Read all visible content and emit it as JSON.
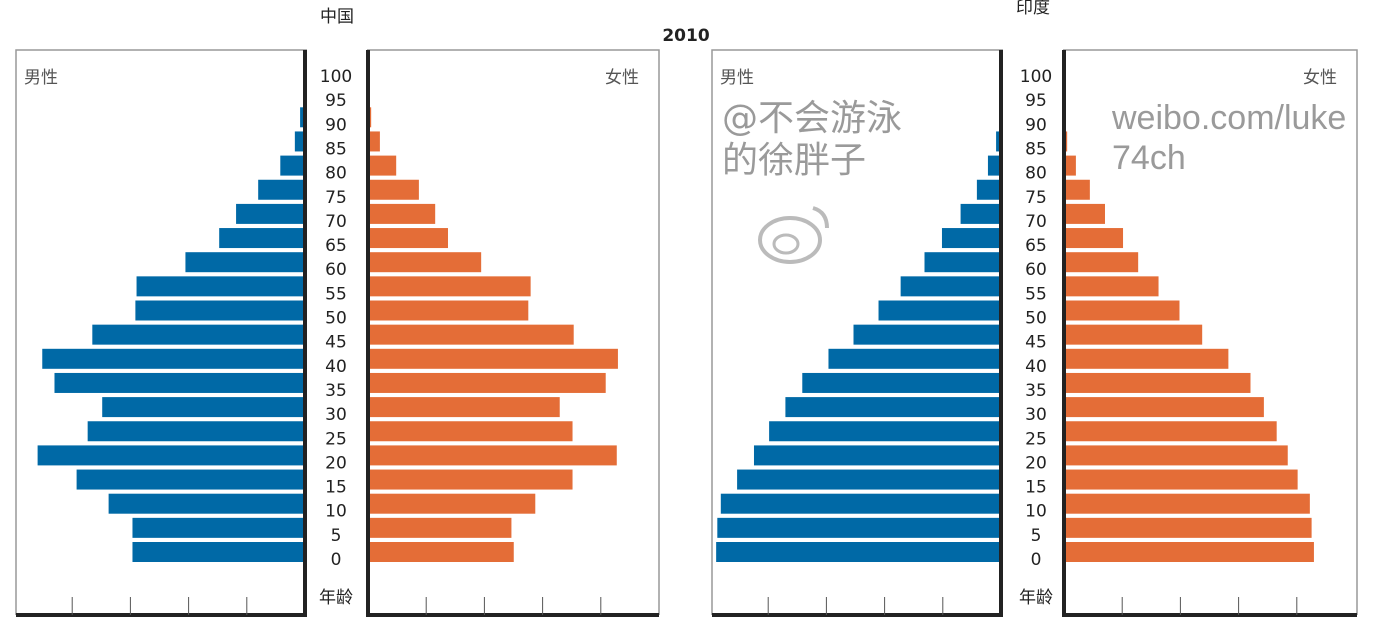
{
  "chart_data": {
    "type": "bar",
    "title": "2010",
    "colors": {
      "male": "#0069a6",
      "female": "#e46d37"
    },
    "age_label": "年龄",
    "age_ticks": [
      "100",
      "95",
      "90",
      "85",
      "80",
      "75",
      "70",
      "65",
      "60",
      "55",
      "50",
      "45",
      "40",
      "35",
      "30",
      "25",
      "20",
      "15",
      "10",
      "5",
      "0"
    ],
    "categories": [
      0,
      5,
      10,
      15,
      20,
      25,
      30,
      35,
      40,
      45,
      50,
      55,
      60,
      65,
      70,
      75,
      80,
      85,
      90,
      95,
      100
    ],
    "xlim": [
      0,
      5
    ],
    "grid": false,
    "panels": [
      {
        "name": "中国",
        "male_label": "男性",
        "female_label": "女性",
        "series": [
          {
            "name": "男性",
            "values": [
              2.93,
              2.93,
              3.34,
              3.89,
              4.56,
              3.7,
              3.45,
              4.27,
              4.48,
              3.62,
              2.88,
              2.86,
              2.02,
              1.44,
              1.15,
              0.77,
              0.39,
              0.14,
              0.05,
              0,
              0
            ]
          },
          {
            "name": "女性",
            "values": [
              2.47,
              2.43,
              2.84,
              3.48,
              4.24,
              3.48,
              3.26,
              4.05,
              4.26,
              3.5,
              2.72,
              2.76,
              1.91,
              1.34,
              1.12,
              0.84,
              0.45,
              0.17,
              0.02,
              0,
              0
            ]
          }
        ]
      },
      {
        "name": "印度",
        "male_label": "男性",
        "female_label": "女性",
        "series": [
          {
            "name": "男性",
            "values": [
              4.86,
              4.84,
              4.78,
              4.5,
              4.21,
              3.95,
              3.67,
              3.38,
              2.93,
              2.5,
              2.07,
              1.69,
              1.28,
              0.98,
              0.66,
              0.38,
              0.19,
              0.05,
              0,
              0,
              0
            ]
          },
          {
            "name": "女性",
            "values": [
              4.26,
              4.22,
              4.19,
              3.98,
              3.81,
              3.62,
              3.4,
              3.17,
              2.79,
              2.34,
              1.95,
              1.59,
              1.24,
              0.98,
              0.67,
              0.41,
              0.17,
              0.02,
              0,
              0,
              0
            ]
          }
        ]
      }
    ]
  },
  "watermark": {
    "line1": "@不会游泳的徐胖子",
    "line2": "weibo.com/luke74ch"
  }
}
